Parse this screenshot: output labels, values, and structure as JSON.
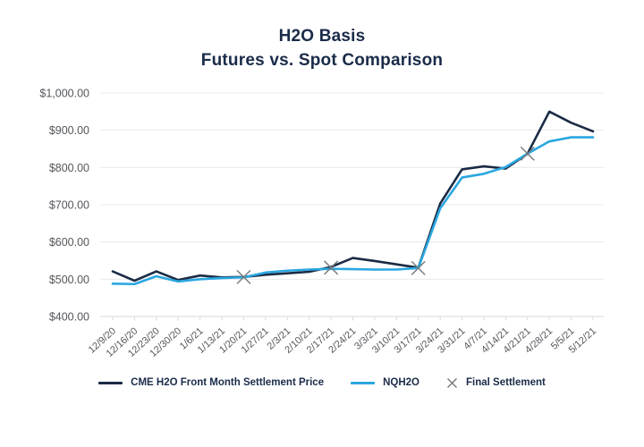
{
  "title": {
    "line1": "H2O Basis",
    "line2": "Futures vs. Spot Comparison"
  },
  "chart_data": {
    "type": "line",
    "title": "H2O Basis Futures vs. Spot Comparison",
    "categories": [
      "12/9/20",
      "12/16/20",
      "12/23/20",
      "12/30/20",
      "1/6/21",
      "1/13/21",
      "1/20/21",
      "1/27/21",
      "2/3/21",
      "2/10/21",
      "2/17/21",
      "2/24/21",
      "3/3/21",
      "3/10/21",
      "3/17/21",
      "3/24/21",
      "3/31/21",
      "4/7/21",
      "4/14/21",
      "4/21/21",
      "4/28/21",
      "5/5/21",
      "5/12/21"
    ],
    "series": [
      {
        "name": "CME H2O Front Month Settlement Price",
        "color": "#1b2b45",
        "values": [
          521,
          496,
          521,
          498,
          510,
          505,
          506,
          512,
          516,
          520,
          533,
          557,
          549,
          540,
          531,
          703,
          795,
          803,
          797,
          837,
          950,
          920,
          897
        ]
      },
      {
        "name": "NQH2O",
        "color": "#2aa7e0",
        "values": [
          488,
          487,
          508,
          494,
          500,
          503,
          505,
          518,
          523,
          526,
          528,
          527,
          526,
          526,
          530,
          690,
          773,
          783,
          801,
          837,
          870,
          881,
          881
        ]
      }
    ],
    "final_settlement": {
      "name": "Final Settlement",
      "color": "#75787b",
      "points": [
        {
          "date": "1/20/21",
          "value": 506
        },
        {
          "date": "2/17/21",
          "value": 531
        },
        {
          "date": "3/17/21",
          "value": 530
        },
        {
          "date": "4/21/21",
          "value": 837
        }
      ]
    },
    "y_axis": {
      "min": 400,
      "max": 1000,
      "step": 100,
      "tick_labels": [
        "$400.00",
        "$500.00",
        "$600.00",
        "$700.00",
        "$800.00",
        "$900.00",
        "$1,000.00"
      ]
    },
    "grid": "horizontal-only",
    "legend_position": "bottom",
    "colors": {
      "title": "#1a2b49",
      "axis_label": "#54575b",
      "gridline": "#e8e9ea",
      "axis_line": "#d9dadc"
    }
  }
}
